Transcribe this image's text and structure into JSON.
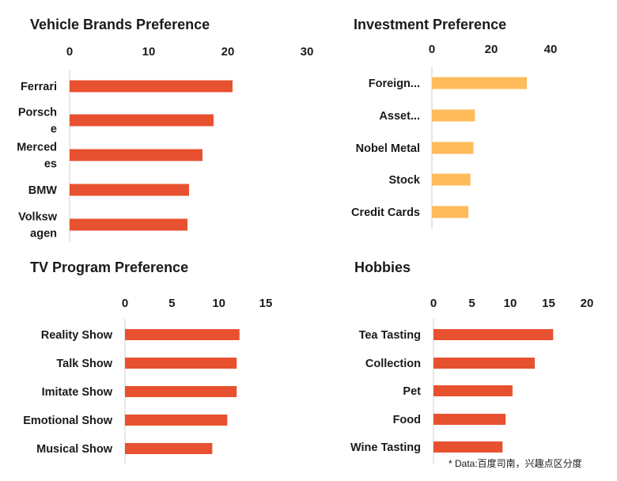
{
  "colors": {
    "accent_red": "#E8512F",
    "accent_yellow": "#FDBB5A"
  },
  "note": "* Data:百度司南，兴趣点区分度",
  "chart_data": [
    {
      "type": "bar",
      "orientation": "horizontal",
      "title": "Vehicle Brands Preference",
      "categories": [
        "Ferrari",
        "Porsche",
        "Mercedes",
        "BMW",
        "Volkswagen"
      ],
      "category_lines": [
        [
          "Ferrari"
        ],
        [
          "Porsch",
          "e"
        ],
        [
          "Merced",
          "es"
        ],
        [
          "BMW"
        ],
        [
          "Volksw",
          "agen"
        ]
      ],
      "values": [
        20.6,
        18.2,
        16.8,
        15.1,
        14.9
      ],
      "ticks": [
        0,
        10,
        20,
        30
      ],
      "xlim": [
        0,
        30
      ],
      "color": "#E8512F"
    },
    {
      "type": "bar",
      "orientation": "horizontal",
      "title": "Investment Preference",
      "categories": [
        "Foreign...",
        "Asset...",
        "Nobel Metal",
        "Stock",
        "Credit Cards"
      ],
      "values": [
        32,
        14.5,
        14,
        13,
        12.3
      ],
      "ticks": [
        0,
        20,
        40
      ],
      "xlim": [
        0,
        40
      ],
      "color": "#FDBB5A"
    },
    {
      "type": "bar",
      "orientation": "horizontal",
      "title": "TV Program Preference",
      "categories": [
        "Reality Show",
        "Talk Show",
        "Imitate Show",
        "Emotional Show",
        "Musical Show"
      ],
      "values": [
        12.2,
        11.9,
        11.9,
        10.9,
        9.3
      ],
      "ticks": [
        0,
        5,
        10,
        15
      ],
      "xlim": [
        0,
        15
      ],
      "color": "#E8512F"
    },
    {
      "type": "bar",
      "orientation": "horizontal",
      "title": "Hobbies",
      "categories": [
        "Tea Tasting",
        "Collection",
        "Pet",
        "Food",
        "Wine Tasting"
      ],
      "values": [
        15.6,
        13.2,
        10.3,
        9.4,
        9.0
      ],
      "ticks": [
        0,
        5,
        10,
        15,
        20
      ],
      "xlim": [
        0,
        20
      ],
      "color": "#E8512F"
    }
  ]
}
